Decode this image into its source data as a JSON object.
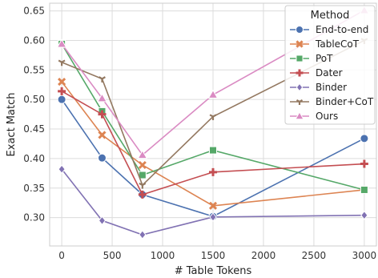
{
  "chart_data": {
    "type": "line",
    "xlabel": "# Table Tokens",
    "ylabel": "Exact Match",
    "x": [
      0,
      400,
      800,
      1500,
      3000
    ],
    "xlim": [
      -120,
      3120
    ],
    "ylim": [
      0.252,
      0.663
    ],
    "xticks": [
      0,
      500,
      1000,
      1500,
      2000,
      2500,
      3000
    ],
    "yticks": [
      0.3,
      0.35,
      0.4,
      0.45,
      0.5,
      0.55,
      0.6,
      0.65
    ],
    "grid": true,
    "legend": {
      "title": "Method",
      "position": "top-right"
    },
    "series": [
      {
        "name": "End-to-end",
        "color": "#4c72b0",
        "marker": "circle",
        "values": [
          0.5,
          0.401,
          0.339,
          0.302,
          0.434
        ]
      },
      {
        "name": "TableCoT",
        "color": "#dd8452",
        "marker": "x",
        "values": [
          0.53,
          0.44,
          0.389,
          0.32,
          0.347
        ]
      },
      {
        "name": "PoT",
        "color": "#55a868",
        "marker": "square",
        "values": [
          0.594,
          0.48,
          0.372,
          0.414,
          0.347
        ]
      },
      {
        "name": "Dater",
        "color": "#c44e52",
        "marker": "plus",
        "values": [
          0.514,
          0.475,
          0.339,
          0.377,
          0.391
        ]
      },
      {
        "name": "Binder",
        "color": "#8172b3",
        "marker": "diamond",
        "values": [
          0.382,
          0.295,
          0.271,
          0.301,
          0.304
        ]
      },
      {
        "name": "Binder+CoT",
        "color": "#937860",
        "marker": "tri_down",
        "values": [
          0.563,
          0.535,
          0.355,
          0.471,
          0.6
        ]
      },
      {
        "name": "Ours",
        "color": "#da8bc3",
        "marker": "triangle",
        "values": [
          0.594,
          0.502,
          0.406,
          0.508,
          0.651
        ]
      }
    ]
  }
}
